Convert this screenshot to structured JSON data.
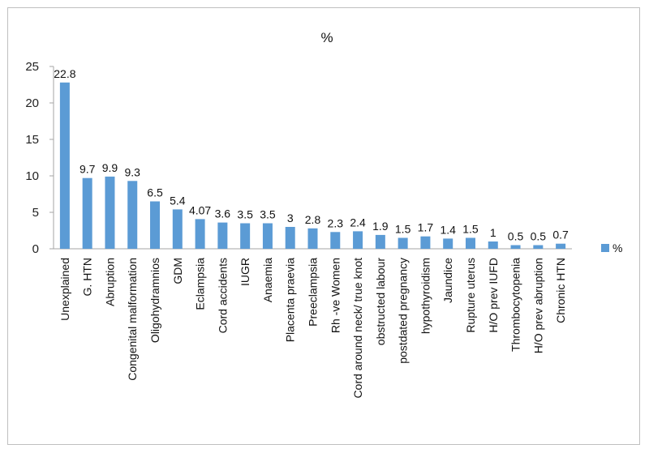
{
  "chart_data": {
    "type": "bar",
    "title": "%",
    "xlabel": "",
    "ylabel": "",
    "ylim": [
      0,
      25
    ],
    "yticks": [
      0,
      5,
      10,
      15,
      20,
      25
    ],
    "grid": false,
    "legend": {
      "position": "right",
      "entries": [
        "%"
      ]
    },
    "categories": [
      "Unexplained",
      "G. HTN",
      "Abruption",
      "Congenital malformation",
      "Oligohydramnios",
      "GDM",
      "Eclampsia",
      "Cord accidents",
      "IUGR",
      "Anaemia",
      "Placenta praevia",
      "Preeclampsia",
      "Rh -ve Women",
      "Cord around neck/ true knot",
      "obstructed labour",
      "postdated pregnancy",
      "hypothyroidism",
      "Jaundice",
      "Rupture uterus",
      "H/O prev IUFD",
      "Thrombocytopenia",
      "H/O prev abruption",
      "Chronic HTN"
    ],
    "series": [
      {
        "name": "%",
        "color": "#5b9bd5",
        "values": [
          22.8,
          9.7,
          9.9,
          9.3,
          6.5,
          5.4,
          4.07,
          3.6,
          3.5,
          3.5,
          3,
          2.8,
          2.3,
          2.4,
          1.9,
          1.5,
          1.7,
          1.4,
          1.5,
          1,
          0.5,
          0.5,
          0.7
        ],
        "labels": [
          "22.8",
          "9.7",
          "9.9",
          "9.3",
          "6.5",
          "5.4",
          "4.07",
          "3.6",
          "3.5",
          "3.5",
          "3",
          "2.8",
          "2.3",
          "2.4",
          "1.9",
          "1.5",
          "1.7",
          "1.4",
          "1.5",
          "1",
          "0.5",
          "0.5",
          "0.7"
        ]
      }
    ]
  }
}
